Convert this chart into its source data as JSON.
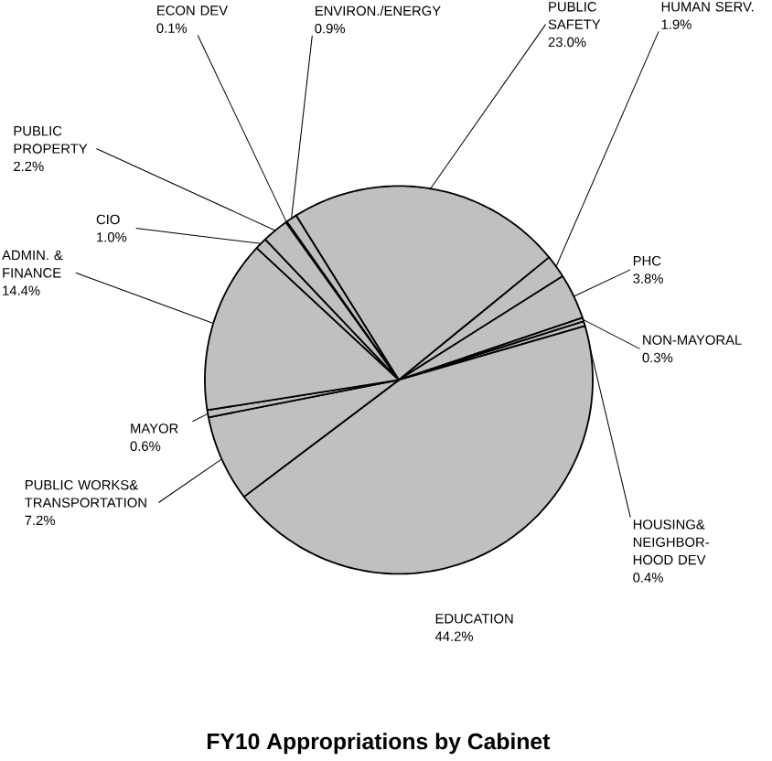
{
  "chart_data": {
    "type": "pie",
    "title": "FY10 Appropriations by Cabinet",
    "categories": [
      "PUBLIC SAFETY",
      "HUMAN SERV.",
      "PHC",
      "NON-MAYORAL",
      "HOUSING& NEIGHBOR-HOOD DEV",
      "EDUCATION",
      "PUBLIC WORKS& TRANSPORTATION",
      "MAYOR",
      "ADMIN. & FINANCE",
      "CIO",
      "PUBLIC PROPERTY",
      "ECON DEV",
      "ENVIRON./ENERGY"
    ],
    "values": [
      23.0,
      1.9,
      3.8,
      0.3,
      0.4,
      44.2,
      7.2,
      0.6,
      14.4,
      1.0,
      2.2,
      0.1,
      0.9
    ],
    "value_labels": [
      "23.0%",
      "1.9%",
      "3.8%",
      "0.3%",
      "0.4%",
      "44.2%",
      "7.2%",
      "0.6%",
      "14.4%",
      "1.0%",
      "2.2%",
      "0.1%",
      "0.9%"
    ],
    "colors": [
      "#c0c0c0",
      "#c0c0c0",
      "#c0c0c0",
      "#c0c0c0",
      "#c0c0c0",
      "#c0c0c0",
      "#c0c0c0",
      "#c0c0c0",
      "#c0c0c0",
      "#c0c0c0",
      "#c0c0c0",
      "#c0c0c0",
      "#c0c0c0"
    ]
  }
}
